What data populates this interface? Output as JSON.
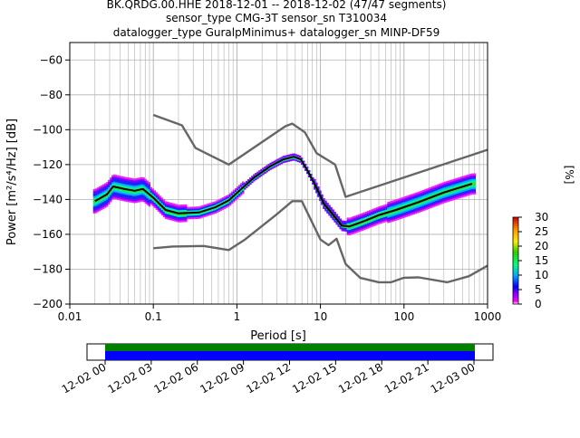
{
  "title": {
    "line1": "BK.QRDG.00.HHE   2018-12-01 -- 2018-12-02  (47/47 segments)",
    "line2": "sensor_type CMG-3T sensor_sn T310034",
    "line3": "datalogger_type GuralpMinimus+ datalogger_sn MINP-DF59"
  },
  "chart_data": [
    {
      "type": "heatmap",
      "xlabel": "Period [s]",
      "ylabel": "Power [m²/s⁴/Hz] [dB]",
      "xscale": "log",
      "xlim": [
        0.01,
        1000
      ],
      "ylim": [
        -200,
        -50
      ],
      "grid": true,
      "x_ticks": [
        {
          "v": 0.01,
          "label": "0.01"
        },
        {
          "v": 0.1,
          "label": "0.1"
        },
        {
          "v": 1,
          "label": "1"
        },
        {
          "v": 10,
          "label": "10"
        },
        {
          "v": 100,
          "label": "100"
        },
        {
          "v": 1000,
          "label": "1000"
        }
      ],
      "y_ticks": [
        {
          "v": -60,
          "label": "−60"
        },
        {
          "v": -80,
          "label": "−80"
        },
        {
          "v": -100,
          "label": "−100"
        },
        {
          "v": -120,
          "label": "−120"
        },
        {
          "v": -140,
          "label": "−140"
        },
        {
          "v": -160,
          "label": "−160"
        },
        {
          "v": -180,
          "label": "−180"
        },
        {
          "v": -200,
          "label": "−200"
        }
      ],
      "series": [
        {
          "role": "noise-model-high",
          "color": "#666666",
          "x": [
            0.1,
            0.22,
            0.32,
            0.8,
            3.8,
            4.6,
            6.5,
            9.0,
            15.0,
            20.0,
            1000
          ],
          "y": [
            -91.5,
            -97.5,
            -110.5,
            -120.0,
            -98.0,
            -96.5,
            -101.5,
            -113.5,
            -120.0,
            -138.5,
            -111.5
          ]
        },
        {
          "role": "noise-model-low",
          "color": "#666666",
          "x": [
            0.1,
            0.17,
            0.4,
            0.8,
            1.25,
            3.0,
            4.6,
            6.0,
            10.0,
            12.5,
            15.6,
            20.0,
            30.0,
            50.0,
            70.0,
            100.0,
            150.0,
            330.0,
            600.0,
            1000.0
          ],
          "y": [
            -168.0,
            -167.0,
            -166.7,
            -169.0,
            -163.0,
            -148.5,
            -141.0,
            -141.0,
            -163.0,
            -166.2,
            -162.5,
            -177.0,
            -185.0,
            -187.5,
            -187.5,
            -184.9,
            -184.7,
            -187.5,
            -184.0,
            -178.0
          ]
        },
        {
          "role": "mean-psd",
          "color": "#000000",
          "x": [
            0.02,
            0.028,
            0.033,
            0.045,
            0.06,
            0.075,
            0.1,
            0.14,
            0.2,
            0.35,
            0.55,
            0.8,
            1.1,
            1.6,
            2.5,
            3.6,
            4.8,
            5.8,
            7.0,
            9.0,
            11.0,
            14.0,
            18.0,
            22.0,
            27.0,
            35.0,
            50.0,
            80.0,
            150.0,
            300.0,
            650.0
          ],
          "y": [
            -141.0,
            -137.0,
            -132.5,
            -134.0,
            -135.0,
            -134.0,
            -139.0,
            -146.0,
            -148.0,
            -147.5,
            -144.5,
            -140.5,
            -134.5,
            -127.5,
            -121.0,
            -117.0,
            -115.5,
            -117.0,
            -123.5,
            -133.5,
            -142.5,
            -148.5,
            -155.0,
            -155.5,
            -154.0,
            -152.0,
            -149.0,
            -146.0,
            -141.5,
            -136.0,
            -131.0
          ]
        }
      ]
    },
    {
      "type": "heatmap",
      "role": "colorbar",
      "label": "[%]",
      "range": [
        0,
        30
      ],
      "ticks": [
        {
          "v": 0,
          "label": "0"
        },
        {
          "v": 5,
          "label": "5"
        },
        {
          "v": 10,
          "label": "10"
        },
        {
          "v": 15,
          "label": "15"
        },
        {
          "v": 20,
          "label": "20"
        },
        {
          "v": 25,
          "label": "25"
        },
        {
          "v": 30,
          "label": "30"
        }
      ]
    },
    {
      "type": "bar",
      "role": "data-coverage",
      "ticks": [
        "12-02 00",
        "12-02 03",
        "12-02 06",
        "12-02 09",
        "12-02 12",
        "12-02 15",
        "12-02 18",
        "12-02 21",
        "12-03 00"
      ]
    }
  ],
  "colors": {
    "coverage_green": "#008000",
    "coverage_blue": "#0000ff",
    "model_line": "#666666",
    "grid": "#b0b0b0"
  }
}
